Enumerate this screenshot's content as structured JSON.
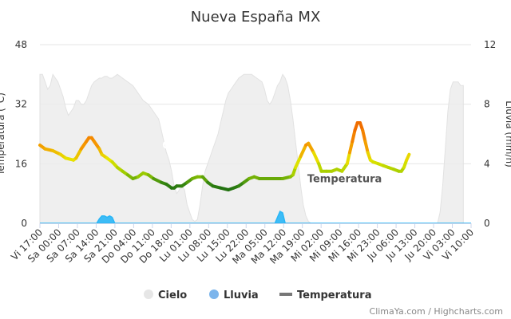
{
  "chart_data": {
    "type": "line",
    "title": "Nueva España MX",
    "credits": "ClimaYa.com / Highcharts.com",
    "grid": true,
    "legend_position": "bottom",
    "x_tick_labels": [
      "Vi 17:00",
      "Sa 00:00",
      "Sa 07:00",
      "Sa 14:00",
      "Sa 21:00",
      "Do 04:00",
      "Do 11:00",
      "Do 18:00",
      "Lu 01:00",
      "Lu 08:00",
      "Lu 15:00",
      "Lu 22:00",
      "Ma 05:00",
      "Ma 12:00",
      "Ma 19:00",
      "Mi 02:00",
      "Mi 09:00",
      "Mi 16:00",
      "Mi 23:00",
      "Ju 06:00",
      "Ju 13:00",
      "Ju 20:00",
      "Vi 03:00",
      "Vi 10:00"
    ],
    "x_range": [
      0,
      167
    ],
    "y_left": {
      "label": "Temperatura (°C)",
      "range": [
        0,
        48
      ],
      "ticks": [
        "0",
        "16",
        "32",
        "48"
      ]
    },
    "y_right": {
      "label": "Lluvia (mm/h)",
      "range": [
        0,
        12
      ],
      "ticks": [
        "0",
        "4",
        "8",
        "12"
      ]
    },
    "series": [
      {
        "name": "Cielo",
        "axis": "left",
        "kind": "area",
        "color": "#ececec",
        "label": "Cielo",
        "label_at": [
          53,
          20
        ],
        "points": [
          [
            0,
            40
          ],
          [
            1,
            40
          ],
          [
            2,
            38
          ],
          [
            3,
            36
          ],
          [
            4,
            37
          ],
          [
            5,
            40
          ],
          [
            6,
            39
          ],
          [
            7,
            38
          ],
          [
            8,
            36
          ],
          [
            9,
            34
          ],
          [
            10,
            31
          ],
          [
            11,
            29
          ],
          [
            12,
            30
          ],
          [
            13,
            31
          ],
          [
            14,
            33
          ],
          [
            15,
            33
          ],
          [
            16,
            32
          ],
          [
            17,
            32
          ],
          [
            18,
            33
          ],
          [
            19,
            35
          ],
          [
            20,
            37
          ],
          [
            21,
            38
          ],
          [
            22,
            38.5
          ],
          [
            23,
            39
          ],
          [
            24,
            39
          ],
          [
            25,
            39.5
          ],
          [
            26,
            39.5
          ],
          [
            27,
            39
          ],
          [
            28,
            39
          ],
          [
            29,
            39.5
          ],
          [
            30,
            40
          ],
          [
            32,
            39
          ],
          [
            34,
            38
          ],
          [
            36,
            37
          ],
          [
            38,
            35
          ],
          [
            40,
            33
          ],
          [
            42,
            32
          ],
          [
            44,
            30
          ],
          [
            46,
            28
          ],
          [
            47,
            25
          ],
          [
            48,
            22
          ],
          [
            49,
            19
          ],
          [
            50,
            17
          ],
          [
            51,
            14
          ],
          [
            52,
            10
          ],
          [
            53,
            8
          ],
          [
            54,
            9
          ],
          [
            55,
            10
          ],
          [
            56,
            9
          ],
          [
            57,
            5
          ],
          [
            58,
            3
          ],
          [
            59,
            1
          ],
          [
            60,
            0.5
          ],
          [
            61,
            1
          ],
          [
            62,
            5
          ],
          [
            63,
            10
          ],
          [
            64,
            14
          ],
          [
            65,
            16
          ],
          [
            66,
            18
          ],
          [
            67,
            20
          ],
          [
            68,
            22
          ],
          [
            69,
            24
          ],
          [
            70,
            27
          ],
          [
            71,
            30
          ],
          [
            72,
            33
          ],
          [
            73,
            35
          ],
          [
            74,
            36
          ],
          [
            75,
            37
          ],
          [
            76,
            38
          ],
          [
            77,
            39
          ],
          [
            78,
            39.5
          ],
          [
            79,
            40
          ],
          [
            82,
            40
          ],
          [
            84,
            39
          ],
          [
            86,
            38
          ],
          [
            87,
            36
          ],
          [
            88,
            33
          ],
          [
            89,
            32
          ],
          [
            90,
            33
          ],
          [
            91,
            35
          ],
          [
            92,
            37
          ],
          [
            93,
            38
          ],
          [
            94,
            40
          ],
          [
            95,
            39
          ],
          [
            96,
            37
          ],
          [
            97,
            33
          ],
          [
            98,
            28
          ],
          [
            99,
            22
          ],
          [
            100,
            16
          ],
          [
            101,
            10
          ],
          [
            102,
            5
          ],
          [
            103,
            2
          ],
          [
            104,
            0.5
          ],
          [
            105,
            0
          ],
          [
            154,
            0
          ],
          [
            155,
            3
          ],
          [
            156,
            10
          ],
          [
            157,
            20
          ],
          [
            158,
            30
          ],
          [
            159,
            36
          ],
          [
            160,
            38
          ],
          [
            161,
            38
          ],
          [
            162,
            38
          ],
          [
            163,
            37
          ],
          [
            164,
            37
          ]
        ]
      },
      {
        "name": "Lluvia",
        "axis": "right",
        "kind": "area",
        "color": "#29b6f6",
        "points": [
          [
            0,
            0
          ],
          [
            22,
            0
          ],
          [
            23,
            0.3
          ],
          [
            24,
            0.5
          ],
          [
            25,
            0.5
          ],
          [
            26,
            0.4
          ],
          [
            27,
            0.5
          ],
          [
            28,
            0.4
          ],
          [
            29,
            0
          ],
          [
            91,
            0
          ],
          [
            92,
            0.4
          ],
          [
            93,
            0.8
          ],
          [
            94,
            0.7
          ],
          [
            95,
            0
          ],
          [
            167,
            0
          ]
        ]
      },
      {
        "name": "Temperatura",
        "axis": "left",
        "kind": "line",
        "color": "#777777",
        "label": "Temperatura",
        "label_at": [
          118,
          11
        ],
        "points": [
          [
            0,
            21
          ],
          [
            2,
            20
          ],
          [
            5,
            19.5
          ],
          [
            8,
            18.5
          ],
          [
            10,
            17.5
          ],
          [
            13,
            17
          ],
          [
            14,
            17.5
          ],
          [
            16,
            20
          ],
          [
            18,
            22
          ],
          [
            19,
            23
          ],
          [
            20,
            23
          ],
          [
            21,
            22
          ],
          [
            23,
            20
          ],
          [
            24,
            18.5
          ],
          [
            26,
            17.5
          ],
          [
            28,
            16.5
          ],
          [
            30,
            15
          ],
          [
            32,
            14
          ],
          [
            34,
            13
          ],
          [
            36,
            12
          ],
          [
            38,
            12.5
          ],
          [
            40,
            13.5
          ],
          [
            42,
            13
          ],
          [
            44,
            12
          ],
          [
            47,
            11
          ],
          [
            49,
            10.5
          ],
          [
            51,
            9.5
          ],
          [
            52,
            9.5
          ],
          [
            53,
            10
          ],
          [
            55,
            10
          ],
          [
            57,
            11
          ],
          [
            59,
            12
          ],
          [
            61,
            12.5
          ],
          [
            63,
            12.5
          ],
          [
            65,
            11
          ],
          [
            67,
            10
          ],
          [
            70,
            9.5
          ],
          [
            73,
            9
          ],
          [
            75,
            9.5
          ],
          [
            77,
            10
          ],
          [
            79,
            11
          ],
          [
            81,
            12
          ],
          [
            83,
            12.5
          ],
          [
            85,
            12
          ],
          [
            88,
            12
          ],
          [
            91,
            12
          ],
          [
            94,
            12
          ],
          [
            97,
            12.5
          ],
          [
            98,
            13
          ],
          [
            99,
            15
          ],
          [
            101,
            18
          ],
          [
            103,
            21
          ],
          [
            104,
            21.5
          ],
          [
            106,
            19
          ],
          [
            108,
            16
          ],
          [
            109,
            14
          ],
          [
            111,
            14
          ],
          [
            113,
            14
          ],
          [
            115,
            14.5
          ],
          [
            117,
            14
          ],
          [
            119,
            16
          ],
          [
            120,
            19
          ],
          [
            121,
            22
          ],
          [
            122,
            25
          ],
          [
            123,
            27
          ],
          [
            124,
            27
          ],
          [
            125,
            25
          ],
          [
            126,
            22
          ],
          [
            127,
            19
          ],
          [
            128,
            17
          ],
          [
            129,
            16.5
          ],
          [
            131,
            16
          ],
          [
            133,
            15.5
          ],
          [
            135,
            15
          ],
          [
            137,
            14.5
          ],
          [
            139,
            14
          ],
          [
            140,
            14
          ],
          [
            141,
            15
          ],
          [
            142,
            17
          ],
          [
            143,
            18.5
          ]
        ]
      }
    ]
  }
}
